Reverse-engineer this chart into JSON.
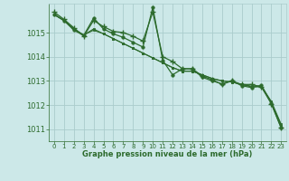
{
  "xlabel": "Graphe pression niveau de la mer (hPa)",
  "bg_color": "#cce8e8",
  "grid_color": "#aacccc",
  "line_color": "#2d6b2d",
  "x_ticks": [
    0,
    1,
    2,
    3,
    4,
    5,
    6,
    7,
    8,
    9,
    10,
    11,
    12,
    13,
    14,
    15,
    16,
    17,
    18,
    19,
    20,
    21,
    22,
    23
  ],
  "ylim": [
    1010.5,
    1016.2
  ],
  "y_ticks": [
    1011,
    1012,
    1013,
    1014,
    1015
  ],
  "series": [
    [
      1015.85,
      1015.55,
      1015.2,
      1014.85,
      1015.5,
      1015.25,
      1015.05,
      1015.0,
      1014.85,
      1014.65,
      1015.85,
      1014.0,
      1013.8,
      1013.5,
      1013.5,
      1013.2,
      1013.05,
      1012.85,
      1013.0,
      1012.85,
      1012.85,
      1012.75,
      1012.05,
      1011.05
    ],
    [
      1015.75,
      1015.5,
      1015.15,
      1014.9,
      1015.1,
      1014.95,
      1014.75,
      1014.55,
      1014.35,
      1014.15,
      1013.95,
      1013.75,
      1013.55,
      1013.4,
      1013.4,
      1013.25,
      1013.1,
      1013.0,
      1012.95,
      1012.85,
      1012.78,
      1012.78,
      1012.15,
      1011.2
    ],
    [
      1015.75,
      1015.5,
      1015.15,
      1014.9,
      1015.15,
      1014.95,
      1014.75,
      1014.55,
      1014.35,
      1014.15,
      1013.95,
      1013.75,
      1013.55,
      1013.4,
      1013.4,
      1013.25,
      1013.1,
      1013.0,
      1012.95,
      1012.85,
      1012.75,
      1012.75,
      1012.1,
      1011.15
    ],
    [
      1015.75,
      1015.5,
      1015.1,
      1014.88,
      1015.6,
      1015.15,
      1014.95,
      1014.8,
      1014.6,
      1014.4,
      1016.05,
      1013.85,
      1013.25,
      1013.5,
      1013.5,
      1013.15,
      1013.0,
      1012.88,
      1013.0,
      1012.8,
      1012.72,
      1012.82,
      1012.08,
      1011.05
    ]
  ]
}
